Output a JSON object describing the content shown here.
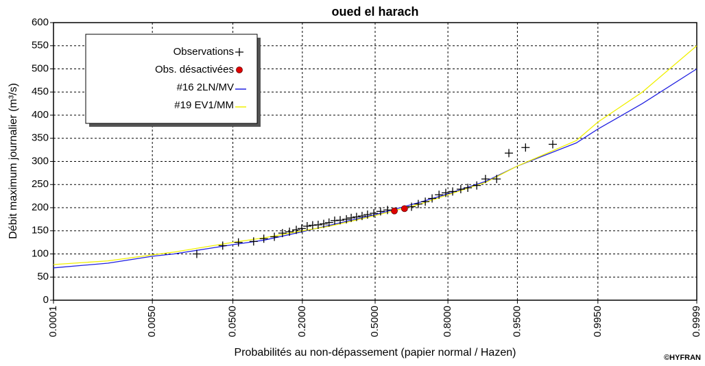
{
  "chart_data": {
    "type": "scatter",
    "title": "oued el harach",
    "xlabel": "Probabilités au non-dépassement (papier normal / Hazen)",
    "ylabel": "Débit maximum journalier (m³/s)",
    "annotation": "©HYFRAN",
    "xscale": "normal-probability",
    "xlim": [
      0.0001,
      0.9999
    ],
    "xticks": [
      {
        "value": 0.0001,
        "label": "0.0001"
      },
      {
        "value": 0.005,
        "label": "0.0050"
      },
      {
        "value": 0.05,
        "label": "0.0500"
      },
      {
        "value": 0.2,
        "label": "0.2000"
      },
      {
        "value": 0.5,
        "label": "0.5000"
      },
      {
        "value": 0.8,
        "label": "0.8000"
      },
      {
        "value": 0.95,
        "label": "0.9500"
      },
      {
        "value": 0.995,
        "label": "0.9950"
      },
      {
        "value": 0.9999,
        "label": "0.9999"
      }
    ],
    "ylim": [
      0,
      600
    ],
    "yticks": [
      0,
      50,
      100,
      150,
      200,
      250,
      300,
      350,
      400,
      450,
      500,
      550,
      600
    ],
    "grid": true,
    "legend": "upper left",
    "series": [
      {
        "name": "Observations",
        "kind": "points",
        "marker": "plus",
        "color": "#000000",
        "x": [
          0.0196,
          0.039,
          0.057,
          0.08,
          0.099,
          0.122,
          0.142,
          0.161,
          0.181,
          0.198,
          0.216,
          0.235,
          0.255,
          0.276,
          0.297,
          0.32,
          0.343,
          0.37,
          0.391,
          0.415,
          0.44,
          0.465,
          0.494,
          0.525,
          0.557,
          0.663,
          0.691,
          0.719,
          0.745,
          0.77,
          0.793,
          0.815,
          0.839,
          0.858,
          0.88,
          0.899,
          0.92,
          0.939,
          0.959,
          0.98
        ],
        "values": [
          100,
          118,
          125,
          127,
          133,
          137,
          145,
          148,
          152,
          155,
          160,
          162,
          163,
          165,
          168,
          172,
          173,
          175,
          178,
          180,
          182,
          185,
          188,
          192,
          195,
          202,
          208,
          213,
          220,
          228,
          232,
          235,
          240,
          243,
          248,
          262,
          262,
          318,
          330,
          337
        ]
      },
      {
        "name": "Obs. désactivées",
        "kind": "points",
        "marker": "circle",
        "color": "#e00000",
        "x": [
          0.588,
          0.633
        ],
        "values": [
          193,
          198
        ]
      },
      {
        "name": "#16 2LN/MV",
        "kind": "line",
        "color": "#2020e0",
        "x": [
          0.0001,
          0.001,
          0.005,
          0.01,
          0.05,
          0.1,
          0.2,
          0.3,
          0.5,
          0.7,
          0.8,
          0.9,
          0.95,
          0.99,
          0.995,
          0.999,
          0.9999
        ],
        "values": [
          70,
          80,
          95,
          100,
          120,
          130,
          148,
          162,
          185,
          212,
          230,
          257,
          290,
          340,
          370,
          425,
          500
        ]
      },
      {
        "name": "#19 EV1/MM",
        "kind": "line",
        "color": "#f0f000",
        "x": [
          0.0001,
          0.001,
          0.005,
          0.01,
          0.05,
          0.1,
          0.2,
          0.3,
          0.5,
          0.7,
          0.8,
          0.9,
          0.95,
          0.99,
          0.995,
          0.999,
          0.9999
        ],
        "values": [
          77,
          85,
          98,
          104,
          125,
          135,
          150,
          160,
          183,
          208,
          228,
          255,
          290,
          345,
          385,
          450,
          550
        ]
      }
    ]
  }
}
